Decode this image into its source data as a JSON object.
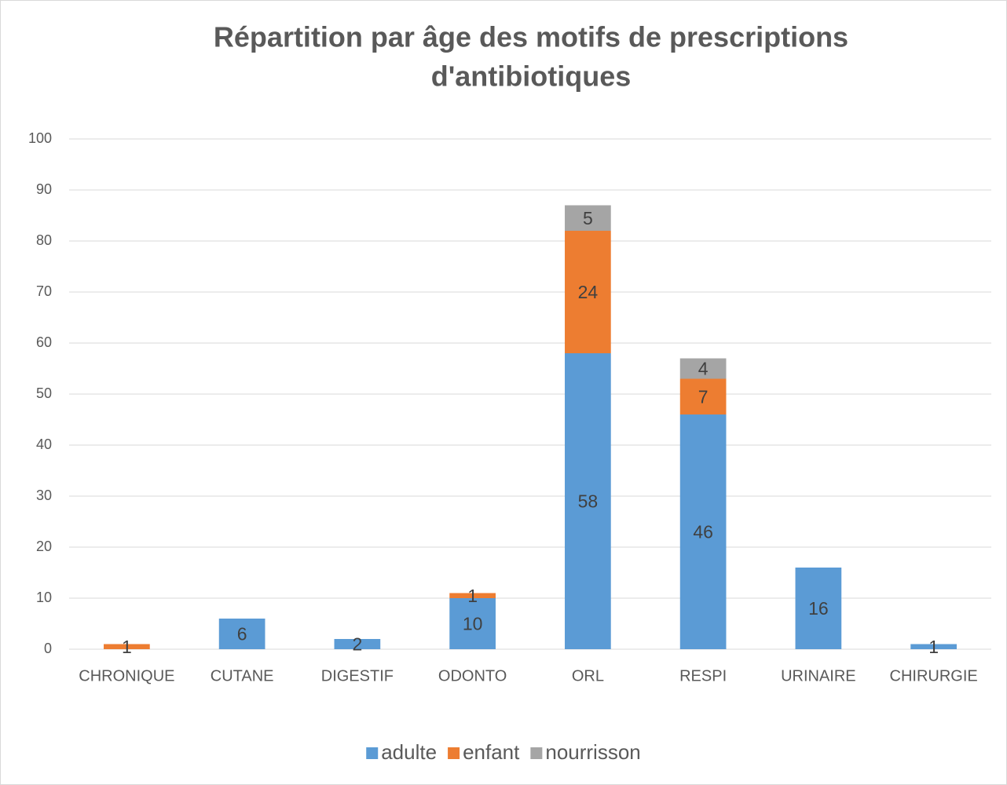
{
  "chart_data": {
    "type": "bar",
    "stacked": true,
    "title": [
      "Répartition par âge des motifs de prescriptions",
      "d'antibiotiques"
    ],
    "categories": [
      "CHRONIQUE",
      "CUTANE",
      "DIGESTIF",
      "ODONTO",
      "ORL",
      "RESPI",
      "URINAIRE",
      "CHIRURGIE"
    ],
    "series": [
      {
        "name": "adulte",
        "color": "#5b9bd5",
        "values": [
          null,
          6,
          2,
          10,
          58,
          46,
          16,
          1
        ]
      },
      {
        "name": "enfant",
        "color": "#ed7d31",
        "values": [
          1,
          null,
          null,
          1,
          24,
          7,
          null,
          null
        ]
      },
      {
        "name": "nourrisson",
        "color": "#a5a5a5",
        "values": [
          null,
          null,
          null,
          null,
          5,
          4,
          null,
          null
        ]
      }
    ],
    "ylim": [
      0,
      100
    ],
    "yticks": [
      0,
      10,
      20,
      30,
      40,
      50,
      60,
      70,
      80,
      90,
      100
    ],
    "grid": true,
    "legend": "bottom",
    "data_labels": true
  }
}
